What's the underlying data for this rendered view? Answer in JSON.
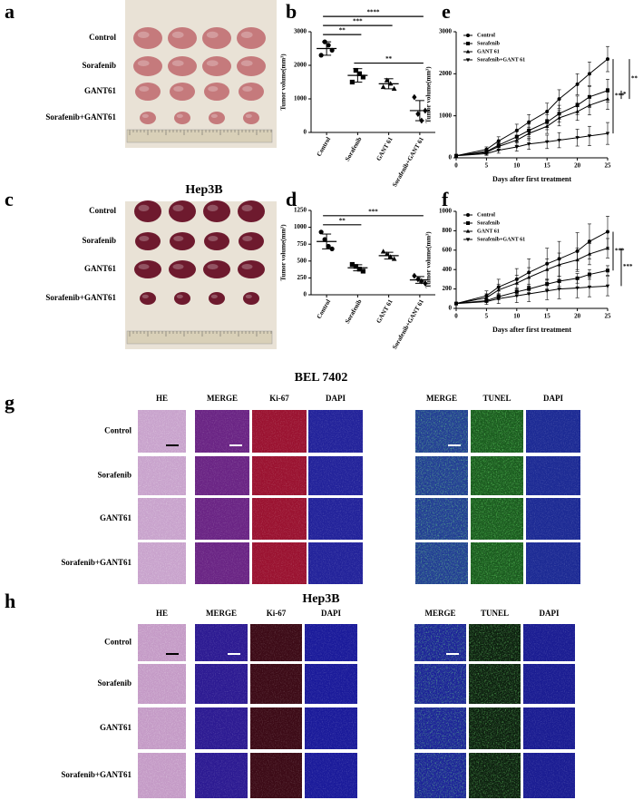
{
  "panel_labels": [
    "a",
    "b",
    "c",
    "d",
    "e",
    "f",
    "g",
    "h"
  ],
  "photo_a": {
    "title": "BEL 7402",
    "rows": [
      "Control",
      "Sorafenib",
      "GANT61",
      "Sorafenib+GANT61"
    ]
  },
  "photo_c": {
    "title": "Hep3B",
    "rows": [
      "Control",
      "Sorafenib",
      "GANT61",
      "Sorafenib+GANT61"
    ]
  },
  "chart_data": [
    {
      "type": "dot",
      "y_label": "Tumor volume(mm³)",
      "categories": [
        "Control",
        "Sorafenib",
        "GANT 61",
        "Sorafenib+GANT 61"
      ],
      "values": [
        2500,
        1700,
        1450,
        650
      ],
      "errors": [
        200,
        200,
        150,
        300
      ],
      "points": [
        [
          2300,
          2700,
          2600,
          2450
        ],
        [
          1500,
          1850,
          1750,
          1650
        ],
        [
          1350,
          1550,
          1450,
          1300
        ],
        [
          1050,
          550,
          350,
          650
        ]
      ],
      "markers": [
        "circle",
        "square",
        "triangle",
        "diamond"
      ],
      "color": "#000000",
      "ylim": [
        0,
        3000
      ],
      "yticks": [
        0,
        1000,
        2000,
        3000
      ],
      "significance": [
        {
          "between": [
            "Control",
            "Sorafenib"
          ],
          "label": "**"
        },
        {
          "between": [
            "Control",
            "GANT 61"
          ],
          "label": "***"
        },
        {
          "between": [
            "Control",
            "Sorafenib+GANT 61"
          ],
          "label": "****"
        },
        {
          "between": [
            "Sorafenib",
            "Sorafenib+GANT 61"
          ],
          "label": "**"
        }
      ]
    },
    {
      "type": "dot",
      "y_label": "Tumor volume(mm³)",
      "categories": [
        "Control",
        "Sorafenib",
        "GANT 61",
        "Sorafenib+GANT 61"
      ],
      "values": [
        790,
        400,
        580,
        220
      ],
      "errors": [
        110,
        45,
        50,
        50
      ],
      "points": [
        [
          930,
          820,
          720,
          680
        ],
        [
          450,
          420,
          380,
          350
        ],
        [
          640,
          600,
          560,
          530
        ],
        [
          280,
          230,
          200,
          170
        ]
      ],
      "markers": [
        "circle",
        "square",
        "triangle",
        "diamond"
      ],
      "color": "#000000",
      "ylim": [
        0,
        1250
      ],
      "yticks": [
        0,
        250,
        500,
        750,
        1000,
        1250
      ],
      "significance": [
        {
          "between": [
            "Control",
            "Sorafenib"
          ],
          "label": "**"
        },
        {
          "between": [
            "Control",
            "Sorafenib+GANT 61"
          ],
          "label": "***"
        }
      ]
    },
    {
      "type": "line",
      "y_label": "Tumor volume(mm³)",
      "x_label": "Days after first treatment",
      "x": [
        0,
        5,
        7,
        10,
        12,
        15,
        17,
        20,
        22,
        25
      ],
      "xlim": [
        0,
        25
      ],
      "xticks": [
        0,
        5,
        10,
        15,
        20,
        25
      ],
      "ylim": [
        0,
        3000
      ],
      "yticks": [
        0,
        1000,
        2000,
        3000
      ],
      "legend": "upper left",
      "series": [
        {
          "name": "Control",
          "color": "#000000",
          "marker": "circle",
          "values": [
            50,
            200,
            400,
            650,
            850,
            1100,
            1400,
            1750,
            2000,
            2350
          ],
          "errors": [
            20,
            60,
            100,
            150,
            180,
            200,
            220,
            250,
            280,
            300
          ]
        },
        {
          "name": "Sorafenib",
          "color": "#000000",
          "marker": "square",
          "values": [
            50,
            150,
            300,
            500,
            650,
            850,
            1050,
            1250,
            1450,
            1600
          ],
          "errors": [
            20,
            50,
            90,
            130,
            150,
            180,
            200,
            220,
            250,
            270
          ]
        },
        {
          "name": "GANT 61",
          "color": "#000000",
          "marker": "triangle",
          "values": [
            50,
            130,
            270,
            420,
            580,
            750,
            950,
            1100,
            1250,
            1400
          ],
          "errors": [
            20,
            50,
            80,
            120,
            150,
            170,
            190,
            210,
            230,
            250
          ]
        },
        {
          "name": "Sorafenib+GANT 61",
          "color": "#000000",
          "marker": "triangle_down",
          "values": [
            50,
            100,
            180,
            260,
            330,
            380,
            420,
            480,
            520,
            580
          ],
          "errors": [
            20,
            40,
            70,
            100,
            130,
            160,
            180,
            200,
            230,
            260
          ]
        }
      ],
      "significance": [
        {
          "between": [
            "Control",
            "Sorafenib+GANT 61"
          ],
          "label": "***"
        },
        {
          "between": [
            "Sorafenib",
            "GANT 61"
          ],
          "label": "*"
        },
        {
          "between": [
            "Control",
            "GANT 61"
          ],
          "label": "**"
        }
      ]
    },
    {
      "type": "line",
      "y_label": "Tumor volume(mm³)",
      "x_label": "Days after first treatment",
      "x": [
        0,
        5,
        7,
        10,
        12,
        15,
        17,
        20,
        22,
        25
      ],
      "xlim": [
        0,
        25
      ],
      "xticks": [
        0,
        5,
        10,
        15,
        20,
        25
      ],
      "ylim": [
        0,
        1000
      ],
      "yticks": [
        0,
        200,
        400,
        600,
        800,
        1000
      ],
      "legend": "upper left",
      "series": [
        {
          "name": "Control",
          "color": "#000000",
          "marker": "circle",
          "values": [
            50,
            130,
            220,
            300,
            370,
            460,
            510,
            590,
            690,
            790
          ],
          "errors": [
            10,
            50,
            80,
            110,
            140,
            160,
            180,
            190,
            180,
            160
          ]
        },
        {
          "name": "Sorafenib",
          "color": "#000000",
          "marker": "square",
          "values": [
            50,
            80,
            120,
            170,
            200,
            250,
            280,
            310,
            350,
            390
          ],
          "errors": [
            10,
            20,
            30,
            40,
            50,
            50,
            50,
            50,
            50,
            50
          ]
        },
        {
          "name": "GANT 61",
          "color": "#000000",
          "marker": "triangle",
          "values": [
            50,
            110,
            190,
            260,
            320,
            400,
            450,
            500,
            560,
            620
          ],
          "errors": [
            10,
            40,
            60,
            80,
            100,
            110,
            120,
            120,
            110,
            100
          ]
        },
        {
          "name": "Sorafenib+GANT 61",
          "color": "#000000",
          "marker": "triangle_down",
          "values": [
            50,
            70,
            100,
            130,
            150,
            180,
            200,
            210,
            220,
            230
          ],
          "errors": [
            10,
            30,
            50,
            70,
            80,
            90,
            100,
            100,
            100,
            100
          ]
        }
      ],
      "significance": [
        {
          "between": [
            "Control",
            "Sorafenib"
          ],
          "label": "***"
        },
        {
          "between": [
            "GANT 61",
            "Sorafenib+GANT 61"
          ],
          "label": "***"
        }
      ]
    }
  ],
  "ihc_g": {
    "title": "BEL 7402",
    "columns": [
      "HE",
      "MERGE",
      "Ki-67",
      "DAPI",
      "MERGE",
      "TUNEL",
      "DAPI"
    ],
    "rows": [
      "Control",
      "Sorafenib",
      "GANT61",
      "Sorafenib+GANT61"
    ]
  },
  "ihc_h": {
    "title": "Hep3B",
    "columns": [
      "HE",
      "MERGE",
      "Ki-67",
      "DAPI",
      "MERGE",
      "TUNEL",
      "DAPI"
    ],
    "rows": [
      "Control",
      "Sorafenib",
      "GANT61",
      "Sorafenib+GANT61"
    ]
  }
}
